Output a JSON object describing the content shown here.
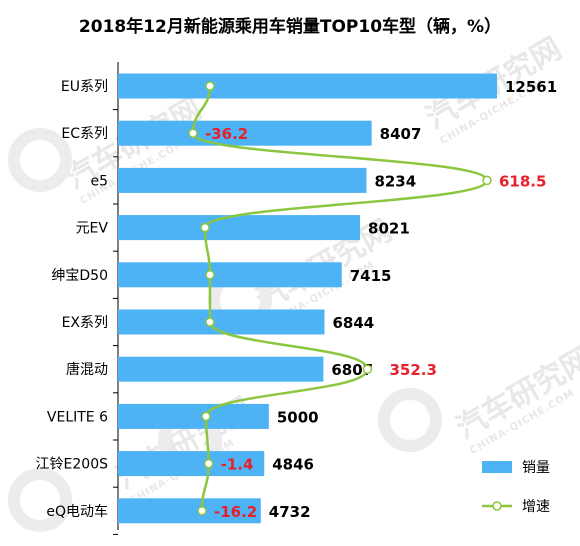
{
  "chart_data": {
    "type": "bar",
    "title": "2018年12月新能源乘用车销量TOP10车型（辆，%）",
    "categories": [
      "EU系列",
      "EC系列",
      "e5",
      "元EV",
      "绅宝D50",
      "EX系列",
      "唐混动",
      "VELITE 6",
      "江铃E200S",
      "eQ电动车"
    ],
    "series": [
      {
        "name": "销量",
        "type": "bar",
        "color": "#4db3f5",
        "values": [
          12561,
          8407,
          8234,
          8021,
          7415,
          6844,
          6807,
          5000,
          4846,
          4732
        ]
      },
      {
        "name": "增速",
        "type": "line",
        "color": "#8cc63f",
        "values": [
          null,
          -36.2,
          618.5,
          null,
          null,
          null,
          352.3,
          null,
          -1.4,
          -16.2
        ],
        "labels": [
          "",
          "-36.2",
          "618.5",
          "",
          "",
          "",
          "352.3",
          "",
          "-1.4",
          "-16.2"
        ]
      }
    ],
    "xlim": [
      0,
      13000
    ],
    "legend_position": "bottom-right",
    "grid": false
  },
  "watermark": {
    "cn": "汽车研究网",
    "en": "CHINA-QICHE.COM"
  }
}
